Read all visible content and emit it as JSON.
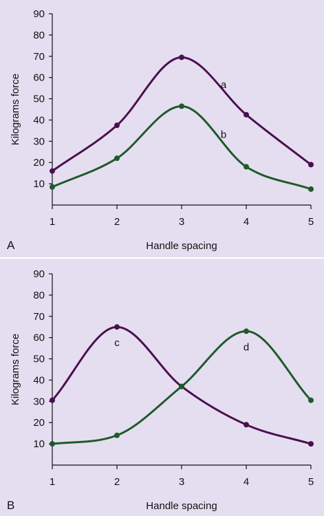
{
  "colors": {
    "background": "#e5def0",
    "purple": "#4b0f4e",
    "green": "#1f5a2b",
    "divider": "#ffffff"
  },
  "chart_data": [
    {
      "type": "line",
      "panel_label": "A",
      "xlabel": "Handle spacing",
      "ylabel": "Kilograms force",
      "xlim": [
        1,
        5
      ],
      "ylim": [
        0,
        90
      ],
      "x_ticks": [
        1,
        2,
        3,
        4,
        5
      ],
      "y_ticks": [
        10,
        20,
        30,
        40,
        50,
        60,
        70,
        80,
        90
      ],
      "x": [
        1,
        2,
        3,
        4,
        5
      ],
      "series": [
        {
          "name": "a",
          "color": "#4b0f4e",
          "values": [
            16,
            37.5,
            69.5,
            42.5,
            19
          ]
        },
        {
          "name": "b",
          "color": "#1f5a2b",
          "values": [
            8.5,
            22,
            46.5,
            18,
            7.5
          ]
        }
      ]
    },
    {
      "type": "line",
      "panel_label": "B",
      "xlabel": "Handle spacing",
      "ylabel": "Kilograms force",
      "xlim": [
        1,
        5
      ],
      "ylim": [
        0,
        90
      ],
      "x_ticks": [
        1,
        2,
        3,
        4,
        5
      ],
      "y_ticks": [
        10,
        20,
        30,
        40,
        50,
        60,
        70,
        80,
        90
      ],
      "x": [
        1,
        2,
        3,
        4,
        5
      ],
      "series": [
        {
          "name": "c",
          "color": "#4b0f4e",
          "values": [
            30.5,
            65,
            37,
            19,
            10
          ]
        },
        {
          "name": "d",
          "color": "#1f5a2b",
          "values": [
            10,
            14,
            37,
            63,
            30.5
          ]
        }
      ]
    }
  ]
}
